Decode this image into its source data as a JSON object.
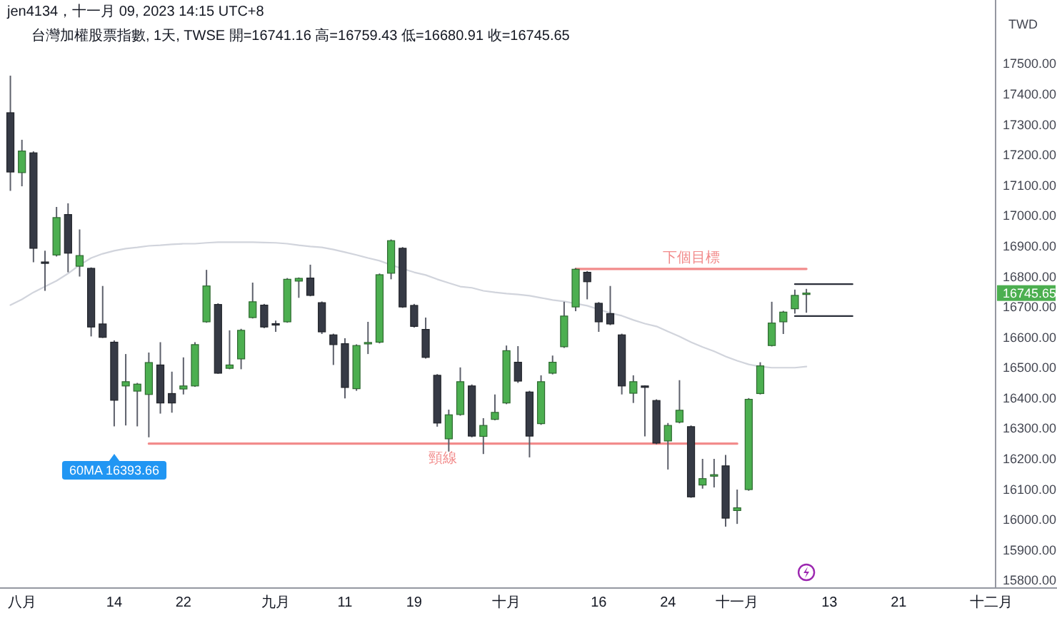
{
  "chart_data": {
    "type": "candlestick",
    "title": "台灣加權股票指數, 1天, TWSE 開=16741.16 高=16759.43 低=16680.91 收=16745.65",
    "ylabel": "TWD",
    "annotations": [
      "jen4134，十一月 09, 2023 14:15 UTC+8",
      "60MA 16393.66",
      "16745.65"
    ],
    "categories": [
      null,
      "八月",
      null,
      null,
      null,
      null,
      null,
      null,
      null,
      "14",
      null,
      null,
      null,
      null,
      null,
      "22",
      null,
      null,
      null,
      null,
      null,
      null,
      null,
      "九月",
      null,
      null,
      null,
      null,
      null,
      "11",
      null,
      null,
      null,
      null,
      null,
      "19",
      null,
      null,
      null,
      null,
      null,
      null,
      null,
      "十月",
      null,
      null,
      null,
      null,
      null,
      null,
      null,
      "16",
      null,
      null,
      null,
      null,
      null,
      "24",
      null,
      null,
      null,
      null,
      null,
      "十一月",
      null,
      null,
      null,
      null,
      null,
      null,
      null,
      "13",
      null,
      null,
      null,
      null,
      null,
      "21",
      null,
      null,
      null,
      null,
      null,
      null,
      null,
      "十二月"
    ],
    "ohlc": [
      [
        17339,
        17461,
        17082,
        17144
      ],
      [
        17142,
        17250,
        17097,
        17213
      ],
      [
        17207,
        17212,
        16847,
        16893
      ],
      [
        16848,
        16885,
        16753,
        16844
      ],
      [
        16871,
        17029,
        16866,
        16994
      ],
      [
        17004,
        17041,
        16814,
        16877
      ],
      [
        16834,
        16955,
        16800,
        16869
      ],
      [
        16827,
        16830,
        16603,
        16634
      ],
      [
        16644,
        16769,
        16598,
        16600
      ],
      [
        16584,
        16590,
        16307,
        16393
      ],
      [
        16440,
        16545,
        16310,
        16454
      ],
      [
        16423,
        16450,
        16307,
        16446
      ],
      [
        16412,
        16550,
        16271,
        16517
      ],
      [
        16509,
        16584,
        16349,
        16384
      ],
      [
        16415,
        16487,
        16352,
        16384
      ],
      [
        16430,
        16534,
        16412,
        16440
      ],
      [
        16440,
        16584,
        16437,
        16576
      ],
      [
        16651,
        16822,
        16648,
        16769
      ],
      [
        16708,
        16712,
        16480,
        16482
      ],
      [
        16498,
        16623,
        16495,
        16509
      ],
      [
        16529,
        16628,
        16495,
        16623
      ],
      [
        16665,
        16780,
        16662,
        16717
      ],
      [
        16706,
        16710,
        16630,
        16634
      ],
      [
        16645,
        16655,
        16618,
        16641
      ],
      [
        16651,
        16795,
        16648,
        16791
      ],
      [
        16785,
        16797,
        16730,
        16794
      ],
      [
        16795,
        16839,
        16735,
        16738
      ],
      [
        16714,
        16718,
        16611,
        16618
      ],
      [
        16608,
        16612,
        16509,
        16576
      ],
      [
        16579,
        16597,
        16399,
        16435
      ],
      [
        16431,
        16577,
        16424,
        16573
      ],
      [
        16580,
        16651,
        16545,
        16583
      ],
      [
        16584,
        16810,
        16580,
        16806
      ],
      [
        16811,
        16922,
        16791,
        16918
      ],
      [
        16893,
        16897,
        16697,
        16700
      ],
      [
        16705,
        16710,
        16632,
        16636
      ],
      [
        16626,
        16665,
        16530,
        16534
      ],
      [
        16475,
        16479,
        16306,
        16318
      ],
      [
        16266,
        16362,
        16224,
        16345
      ],
      [
        16346,
        16501,
        16342,
        16454
      ],
      [
        16440,
        16445,
        16271,
        16275
      ],
      [
        16274,
        16334,
        16216,
        16310
      ],
      [
        16330,
        16412,
        16327,
        16353
      ],
      [
        16384,
        16573,
        16380,
        16556
      ],
      [
        16518,
        16571,
        16450,
        16456
      ],
      [
        16420,
        16424,
        16205,
        16275
      ],
      [
        16316,
        16475,
        16312,
        16454
      ],
      [
        16482,
        16540,
        16478,
        16518
      ],
      [
        16569,
        16717,
        16565,
        16670
      ],
      [
        16700,
        16828,
        16686,
        16824
      ],
      [
        16814,
        16818,
        16725,
        16783
      ],
      [
        16712,
        16716,
        16618,
        16651
      ],
      [
        16678,
        16769,
        16640,
        16644
      ],
      [
        16608,
        16612,
        16412,
        16440
      ],
      [
        16416,
        16475,
        16384,
        16454
      ],
      [
        16440,
        16442,
        16274,
        16436
      ],
      [
        16392,
        16396,
        16248,
        16252
      ],
      [
        16259,
        16318,
        16165,
        16310
      ],
      [
        16321,
        16459,
        16317,
        16360
      ],
      [
        16306,
        16310,
        16072,
        16075
      ],
      [
        16114,
        16200,
        16102,
        16135
      ],
      [
        16143,
        16200,
        16106,
        16148
      ],
      [
        16177,
        16213,
        15977,
        16005
      ],
      [
        16030,
        16099,
        15986,
        16039
      ],
      [
        16099,
        16400,
        16095,
        16396
      ],
      [
        16415,
        16518,
        16412,
        16506
      ],
      [
        16573,
        16717,
        16570,
        16647
      ],
      [
        16651,
        16687,
        16611,
        16683
      ],
      [
        16694,
        16757,
        16678,
        16738
      ],
      [
        16741.16,
        16759.43,
        16680.91,
        16745.65
      ],
      null,
      null,
      null,
      null,
      null,
      null,
      null,
      null,
      null,
      null,
      null,
      null,
      null,
      null,
      null,
      null
    ],
    "colors": [
      "#363a45",
      "#4caf50",
      "#363a45",
      "#363a45",
      "#4caf50",
      "#363a45",
      "#4caf50",
      "#363a45",
      "#363a45",
      "#363a45",
      "#4caf50",
      "#4caf50",
      "#4caf50",
      "#363a45",
      "#363a45",
      "#4caf50",
      "#4caf50",
      "#4caf50",
      "#363a45",
      "#4caf50",
      "#4caf50",
      "#4caf50",
      "#363a45",
      "#363a45",
      "#4caf50",
      "#4caf50",
      "#363a45",
      "#363a45",
      "#363a45",
      "#363a45",
      "#4caf50",
      "#4caf50",
      "#4caf50",
      "#4caf50",
      "#363a45",
      "#363a45",
      "#363a45",
      "#363a45",
      "#4caf50",
      "#4caf50",
      "#363a45",
      "#4caf50",
      "#4caf50",
      "#4caf50",
      "#363a45",
      "#363a45",
      "#4caf50",
      "#4caf50",
      "#4caf50",
      "#4caf50",
      "#363a45",
      "#363a45",
      "#363a45",
      "#363a45",
      "#4caf50",
      "#363a45",
      "#363a45",
      "#4caf50",
      "#4caf50",
      "#363a45",
      "#4caf50",
      "#4caf50",
      "#363a45",
      "#4caf50",
      "#4caf50",
      "#4caf50",
      "#4caf50",
      "#4caf50",
      "#4caf50",
      "#4caf50",
      null,
      null,
      null,
      null,
      null,
      null,
      null,
      null,
      null,
      null,
      null,
      null,
      null,
      null,
      null,
      null
    ],
    "series": [
      {
        "type": "line",
        "color": "#d1d4dc",
        "values": [
          16706,
          16725,
          16748,
          16767,
          16786,
          16810,
          16838,
          16861,
          16875,
          16885,
          16892,
          16896,
          16901,
          16903,
          16906,
          16908,
          16908,
          16911,
          16913,
          16913,
          16913,
          16913,
          16912,
          16911,
          16908,
          16903,
          16899,
          16896,
          16889,
          16880,
          16871,
          16861,
          16852,
          16838,
          16826,
          16814,
          16805,
          16791,
          16779,
          16767,
          16763,
          16753,
          16748,
          16744,
          16741,
          16737,
          16730,
          16723,
          16718,
          16711,
          16704,
          16692,
          16680,
          16671,
          16657,
          16645,
          16636,
          16619,
          16603,
          16584,
          16568,
          16554,
          16537,
          16523,
          16511,
          16504,
          16500,
          16500,
          16500,
          16504,
          null,
          null,
          null,
          null,
          null,
          null,
          null,
          null,
          null,
          null,
          null,
          null,
          null,
          null,
          null,
          null
        ]
      },
      {
        "name": "頸線",
        "type": "line",
        "color": "#f28b8b",
        "values": [
          null,
          null,
          null,
          null,
          null,
          null,
          null,
          null,
          null,
          null,
          null,
          null,
          16250,
          16250,
          16250,
          16250,
          16250,
          16250,
          16250,
          16250,
          16250,
          16250,
          16250,
          16250,
          16250,
          16250,
          16250,
          16250,
          16250,
          16250,
          16250,
          16250,
          16250,
          16250,
          16250,
          16250,
          16250,
          16250,
          16250,
          16250,
          16250,
          16250,
          16250,
          16250,
          16250,
          16250,
          16250,
          16250,
          16250,
          16250,
          16250,
          16250,
          16250,
          16250,
          16250,
          16250,
          16250,
          16250,
          16250,
          16250,
          16250,
          16250,
          16250,
          16250,
          null,
          null,
          null,
          null,
          null,
          null,
          null,
          null,
          null,
          null,
          null,
          null,
          null,
          null,
          null,
          null,
          null,
          null,
          null,
          null,
          null,
          null
        ]
      },
      {
        "name": "下個目標",
        "type": "line",
        "color": "#f28b8b",
        "values": [
          null,
          null,
          null,
          null,
          null,
          null,
          null,
          null,
          null,
          null,
          null,
          null,
          null,
          null,
          null,
          null,
          null,
          null,
          null,
          null,
          null,
          null,
          null,
          null,
          null,
          null,
          null,
          null,
          null,
          null,
          null,
          null,
          null,
          null,
          null,
          null,
          null,
          null,
          null,
          null,
          null,
          null,
          null,
          null,
          null,
          null,
          null,
          null,
          null,
          16825,
          16825,
          16825,
          16825,
          16825,
          16825,
          16825,
          16825,
          16825,
          16825,
          16825,
          16825,
          16825,
          16825,
          16825,
          16825,
          16825,
          16825,
          16825,
          16825,
          16825,
          null,
          null,
          null,
          null,
          null,
          null,
          null,
          null,
          null,
          null,
          null,
          null,
          null,
          null,
          null,
          null
        ]
      },
      {
        "type": "line",
        "color": "#2a2e39",
        "values": [
          null,
          null,
          null,
          null,
          null,
          null,
          null,
          null,
          null,
          null,
          null,
          null,
          null,
          null,
          null,
          null,
          null,
          null,
          null,
          null,
          null,
          null,
          null,
          null,
          null,
          null,
          null,
          null,
          null,
          null,
          null,
          null,
          null,
          null,
          null,
          null,
          null,
          null,
          null,
          null,
          null,
          null,
          null,
          null,
          null,
          null,
          null,
          null,
          null,
          null,
          null,
          null,
          null,
          null,
          null,
          null,
          null,
          null,
          null,
          null,
          null,
          null,
          null,
          null,
          null,
          null,
          null,
          null,
          16775,
          16775,
          16775,
          16775,
          16775,
          16775,
          null,
          null,
          null,
          null,
          null,
          null,
          null,
          null,
          null,
          null,
          null,
          null
        ]
      },
      {
        "type": "line",
        "color": "#2a2e39",
        "values": [
          null,
          null,
          null,
          null,
          null,
          null,
          null,
          null,
          null,
          null,
          null,
          null,
          null,
          null,
          null,
          null,
          null,
          null,
          null,
          null,
          null,
          null,
          null,
          null,
          null,
          null,
          null,
          null,
          null,
          null,
          null,
          null,
          null,
          null,
          null,
          null,
          null,
          null,
          null,
          null,
          null,
          null,
          null,
          null,
          null,
          null,
          null,
          null,
          null,
          null,
          null,
          null,
          null,
          null,
          null,
          null,
          null,
          null,
          null,
          null,
          null,
          null,
          null,
          null,
          null,
          null,
          null,
          null,
          16670,
          16670,
          16670,
          16670,
          16670,
          16670,
          null,
          null,
          null,
          null,
          null,
          null,
          null,
          null,
          null,
          null,
          null,
          null
        ]
      }
    ],
    "ylim": [
      15775,
      17710
    ],
    "yticks": [
      {
        "value": 15800,
        "label": "15800.00"
      },
      {
        "value": 15900,
        "label": "15900.00"
      },
      {
        "value": 16000,
        "label": "16000.00"
      },
      {
        "value": 16100,
        "label": "16100.00"
      },
      {
        "value": 16200,
        "label": "16200.00"
      },
      {
        "value": 16300,
        "label": "16300.00"
      },
      {
        "value": 16400,
        "label": "16400.00"
      },
      {
        "value": 16500,
        "label": "16500.00"
      },
      {
        "value": 16600,
        "label": "16600.00"
      },
      {
        "value": 16700,
        "label": "16700.00"
      },
      {
        "value": 16800,
        "label": "16800.00"
      },
      {
        "value": 16900,
        "label": "16900.00"
      },
      {
        "value": 17000,
        "label": "17000.00"
      },
      {
        "value": 17100,
        "label": "17100.00"
      },
      {
        "value": 17200,
        "label": "17200.00"
      },
      {
        "value": 17300,
        "label": "17300.00"
      },
      {
        "value": 17400,
        "label": "17400.00"
      },
      {
        "value": 17500,
        "label": "17500.00"
      }
    ]
  }
}
